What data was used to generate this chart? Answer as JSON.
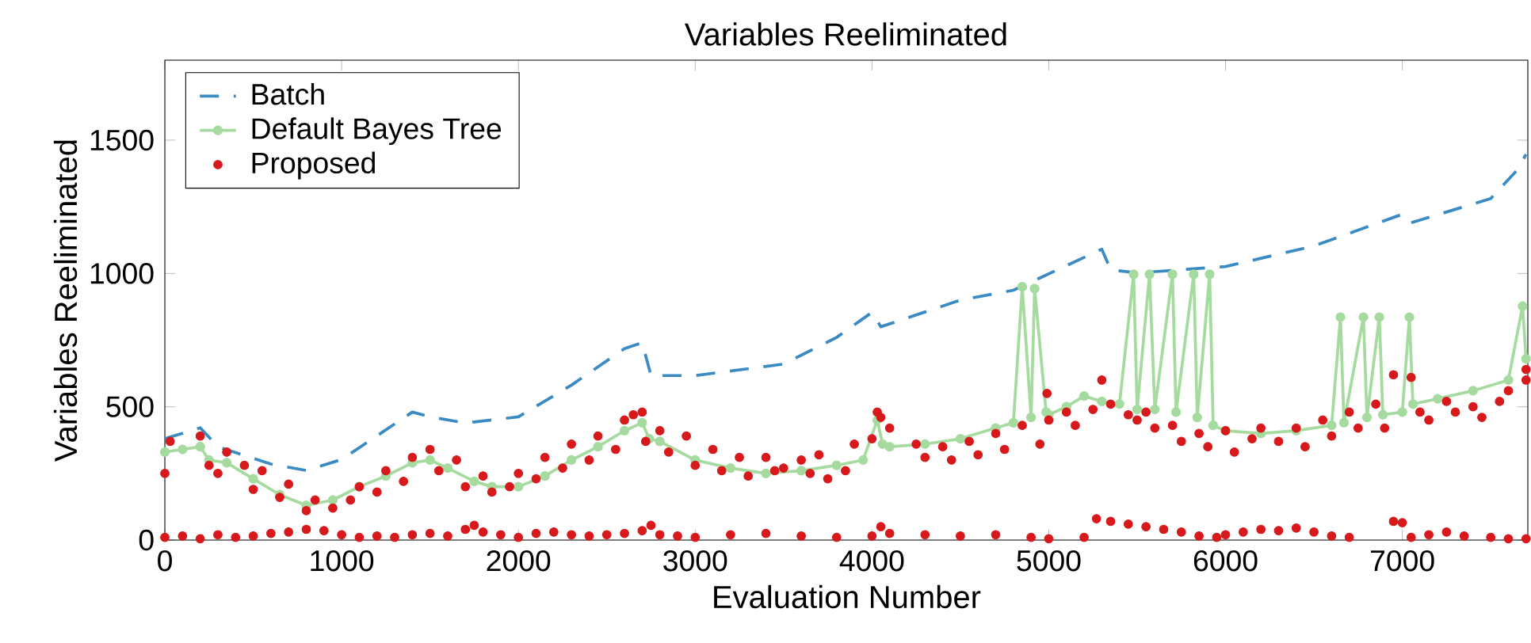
{
  "chart_data": {
    "type": "line",
    "title": "Variables Reeliminated",
    "xlabel": "Evaluation Number",
    "ylabel": "Variables Reeliminated",
    "xlim": [
      0,
      7710
    ],
    "ylim": [
      0,
      1800
    ],
    "xticks": [
      0,
      1000,
      2000,
      3000,
      4000,
      5000,
      6000,
      7000
    ],
    "yticks": [
      0,
      500,
      1000,
      1500
    ],
    "grid": false,
    "legend": "top left",
    "series": [
      {
        "name": "Batch",
        "line_style": "dashed",
        "marker": "none",
        "color": "#3a8ac4",
        "x": [
          0,
          200,
          300,
          600,
          800,
          1000,
          1400,
          1500,
          1700,
          2000,
          2300,
          2600,
          2700,
          2750,
          3000,
          3500,
          3800,
          4000,
          4050,
          4500,
          4800,
          5300,
          5350,
          5500,
          6000,
          6500,
          7000,
          7050,
          7500,
          7650,
          7700
        ],
        "values": [
          380,
          421,
          350,
          285,
          261,
          302,
          480,
          462,
          439,
          462,
          581,
          718,
          740,
          617,
          617,
          660,
          760,
          854,
          800,
          900,
          937,
          1091,
          1014,
          1002,
          1026,
          1103,
          1222,
          1190,
          1281,
          1388,
          1447
        ]
      },
      {
        "name": "Default Bayes Tree",
        "line_style": "solid",
        "marker": "circle",
        "color": "#a6dba0",
        "x": [
          0,
          100,
          200,
          250,
          350,
          500,
          650,
          800,
          950,
          1100,
          1250,
          1400,
          1500,
          1600,
          1750,
          1850,
          2000,
          2150,
          2300,
          2450,
          2600,
          2700,
          2740,
          2800,
          3000,
          3200,
          3400,
          3600,
          3800,
          3950,
          4030,
          4060,
          4100,
          4300,
          4500,
          4700,
          4800,
          4850,
          4900,
          4920,
          4985,
          5000,
          5100,
          5200,
          5300,
          5400,
          5480,
          5500,
          5570,
          5600,
          5700,
          5720,
          5820,
          5840,
          5910,
          5930,
          6000,
          6200,
          6400,
          6600,
          6650,
          6670,
          6780,
          6800,
          6870,
          6890,
          7000,
          7040,
          7060,
          7200,
          7400,
          7600,
          7680,
          7700
        ],
        "values": [
          330,
          340,
          350,
          300,
          290,
          230,
          170,
          130,
          150,
          200,
          240,
          290,
          300,
          270,
          220,
          200,
          200,
          240,
          300,
          350,
          410,
          440,
          380,
          370,
          300,
          270,
          250,
          260,
          280,
          300,
          450,
          360,
          350,
          360,
          380,
          420,
          440,
          950,
          460,
          943,
          480,
          470,
          500,
          540,
          520,
          510,
          997,
          490,
          997,
          490,
          997,
          480,
          997,
          460,
          997,
          430,
          410,
          400,
          410,
          430,
          836,
          440,
          836,
          460,
          836,
          470,
          480,
          836,
          510,
          530,
          560,
          600,
          877,
          680
        ]
      },
      {
        "name": "Proposed",
        "type": "scatter",
        "marker": "circle",
        "color": "#d7191c",
        "x": [
          0,
          30,
          200,
          250,
          300,
          350,
          450,
          500,
          550,
          650,
          700,
          800,
          850,
          950,
          1050,
          1100,
          1200,
          1250,
          1350,
          1400,
          1500,
          1550,
          1650,
          1700,
          1800,
          1850,
          1950,
          2000,
          2100,
          2150,
          2250,
          2300,
          2400,
          2450,
          2550,
          2600,
          2650,
          2700,
          2720,
          2800,
          2850,
          2950,
          3000,
          3100,
          3150,
          3250,
          3300,
          3400,
          3450,
          3500,
          3600,
          3650,
          3700,
          3750,
          3850,
          3900,
          4000,
          4030,
          4050,
          4100,
          4250,
          4300,
          4400,
          4450,
          4550,
          4600,
          4700,
          4750,
          4850,
          4950,
          4990,
          5000,
          5100,
          5150,
          5250,
          5300,
          5350,
          5450,
          5500,
          5550,
          5600,
          5700,
          5750,
          5850,
          5900,
          6000,
          6050,
          6150,
          6200,
          6300,
          6400,
          6450,
          6550,
          6600,
          6700,
          6750,
          6850,
          6900,
          6950,
          7050,
          7100,
          7150,
          7250,
          7300,
          7400,
          7450,
          7550,
          7600,
          7700,
          7700,
          0,
          100,
          200,
          300,
          400,
          500,
          600,
          700,
          800,
          900,
          1000,
          1100,
          1200,
          1300,
          1400,
          1500,
          1600,
          1700,
          1750,
          1800,
          1900,
          2000,
          2100,
          2200,
          2300,
          2400,
          2500,
          2600,
          2700,
          2750,
          2800,
          2900,
          3000,
          3200,
          3400,
          3600,
          3800,
          4000,
          4050,
          4100,
          4300,
          4500,
          4700,
          4900,
          5000,
          5200,
          5270,
          5350,
          5450,
          5550,
          5650,
          5750,
          5850,
          5950,
          6000,
          6100,
          6200,
          6300,
          6400,
          6500,
          6600,
          6700,
          6950,
          7000,
          7050,
          7150,
          7250,
          7350,
          7500,
          7600,
          7700
        ],
        "values": [
          250,
          370,
          390,
          280,
          250,
          330,
          280,
          190,
          260,
          160,
          210,
          110,
          150,
          120,
          150,
          200,
          180,
          260,
          220,
          310,
          340,
          260,
          300,
          200,
          240,
          180,
          200,
          250,
          230,
          310,
          270,
          360,
          300,
          390,
          340,
          450,
          470,
          480,
          370,
          410,
          330,
          390,
          280,
          340,
          260,
          310,
          240,
          310,
          260,
          270,
          300,
          250,
          320,
          230,
          260,
          360,
          380,
          480,
          460,
          420,
          360,
          310,
          350,
          300,
          370,
          320,
          400,
          340,
          430,
          360,
          550,
          450,
          480,
          430,
          490,
          600,
          510,
          470,
          450,
          480,
          420,
          430,
          370,
          400,
          350,
          410,
          330,
          380,
          420,
          370,
          420,
          350,
          450,
          390,
          480,
          420,
          510,
          420,
          620,
          610,
          480,
          450,
          520,
          480,
          500,
          460,
          520,
          560,
          600,
          640,
          10,
          15,
          5,
          20,
          10,
          15,
          25,
          30,
          40,
          35,
          20,
          10,
          15,
          10,
          20,
          25,
          15,
          40,
          55,
          30,
          20,
          10,
          25,
          30,
          20,
          15,
          20,
          25,
          35,
          55,
          20,
          15,
          10,
          20,
          25,
          15,
          10,
          15,
          50,
          25,
          20,
          15,
          20,
          10,
          5,
          10,
          80,
          70,
          60,
          50,
          40,
          30,
          15,
          10,
          20,
          30,
          40,
          35,
          45,
          30,
          15,
          10,
          70,
          65,
          10,
          20,
          30,
          15,
          10,
          5,
          5
        ]
      }
    ]
  }
}
